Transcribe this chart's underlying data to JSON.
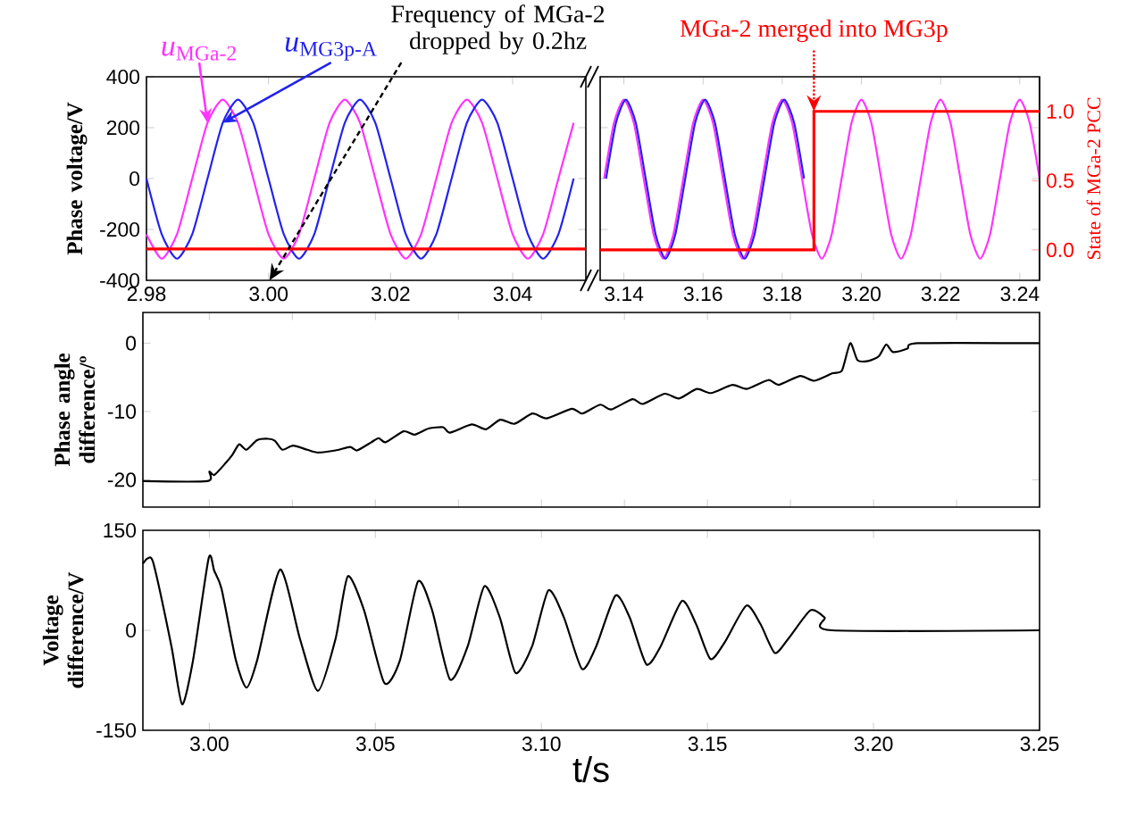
{
  "chart_data": [
    {
      "type": "line",
      "ylabel": "Phase voltage/V",
      "xlim": [
        2.98,
        3.052
      ],
      "xticks": [
        {
          "value": 2.98,
          "label": "2.98"
        },
        {
          "value": 3.0,
          "label": "3.00"
        },
        {
          "value": 3.02,
          "label": "3.02"
        },
        {
          "value": 3.04,
          "label": "3.04"
        }
      ],
      "ylim": [
        -400,
        400
      ],
      "yticks": [
        -400,
        -200,
        0,
        200,
        400
      ],
      "ref_lines": [
        {
          "axis": "y",
          "value": -277,
          "color": "#ff0000"
        }
      ],
      "x": [
        2.98,
        2.9825,
        2.985,
        2.9875,
        2.99,
        2.9925,
        2.995,
        2.9975,
        3.0,
        3.0025,
        3.005,
        3.0075,
        3.01,
        3.0125,
        3.015,
        3.0175,
        3.02,
        3.0225,
        3.025,
        3.0275,
        3.03,
        3.0325,
        3.035,
        3.0375,
        3.04,
        3.0425,
        3.045,
        3.0475,
        3.05
      ],
      "annotations": [
        "Frequency of MGa-2 dropped by 0.2hz"
      ],
      "series": [
        {
          "name": "*u*$_{MGa-2}$",
          "color": "#ff33ff",
          "values": [
            -219,
            -315,
            -219,
            0,
            219,
            310,
            219,
            0,
            -219,
            -315,
            -219,
            0,
            219,
            310,
            219,
            0,
            -219,
            -315,
            -219,
            0,
            219,
            310,
            219,
            0,
            -219,
            -315,
            -219,
            0,
            219
          ]
        },
        {
          "name": "*u*$_{MG3p-A}$",
          "color": "#2222ee",
          "values": [
            0,
            -219,
            -315,
            -219,
            0,
            219,
            310,
            219,
            0,
            -219,
            -315,
            -219,
            0,
            219,
            310,
            219,
            0,
            -219,
            -315,
            -219,
            0,
            219,
            310,
            219,
            0,
            -219,
            -315,
            -219,
            0
          ]
        }
      ]
    },
    {
      "type": "line",
      "y2label": "State of MGa-2 PCC",
      "xlim": [
        3.134,
        3.245
      ],
      "xticks": [
        {
          "value": 3.14,
          "label": "3.14"
        },
        {
          "value": 3.16,
          "label": "3.16"
        },
        {
          "value": 3.18,
          "label": "3.18"
        },
        {
          "value": 3.2,
          "label": "3.20"
        },
        {
          "value": 3.22,
          "label": "3.22"
        },
        {
          "value": 3.24,
          "label": "3.24"
        }
      ],
      "ylim": [
        -400,
        400
      ],
      "yticks": [
        -400,
        -200,
        0,
        200,
        400
      ],
      "tick_labels": "x",
      "y2lim": [
        -0.22,
        1.25
      ],
      "y2ticks": [
        {
          "value": 0,
          "label": "0.0"
        },
        {
          "value": 0.5,
          "label": "0.5"
        },
        {
          "value": 1,
          "label": "1.0"
        }
      ],
      "annotations": [
        {
          "text": "MGa-2 merged into MG3p",
          "x": 3.188,
          "y": 264
        }
      ],
      "series": [
        {
          "color": "#ff33ff",
          "x": [
            3.135,
            3.1375,
            3.14,
            3.1425,
            3.145,
            3.1475,
            3.15,
            3.1525,
            3.155,
            3.1575,
            3.16,
            3.1625,
            3.165,
            3.1675,
            3.17,
            3.1725,
            3.175,
            3.1775,
            3.18,
            3.1825,
            3.185,
            3.1875,
            3.19,
            3.1925,
            3.195,
            3.1975,
            3.2,
            3.2025,
            3.205,
            3.2075,
            3.21,
            3.2125,
            3.215,
            3.2175,
            3.22,
            3.2225,
            3.225,
            3.2275,
            3.23,
            3.2325,
            3.235,
            3.2375,
            3.24,
            3.2425,
            3.245
          ],
          "values": [
            0,
            219,
            310,
            219,
            0,
            -219,
            -315,
            -219,
            0,
            219,
            310,
            219,
            0,
            -219,
            -315,
            -219,
            0,
            219,
            310,
            219,
            0,
            -219,
            -315,
            -219,
            0,
            219,
            310,
            219,
            0,
            -219,
            -315,
            -219,
            0,
            219,
            310,
            219,
            0,
            -219,
            -315,
            -219,
            0,
            219,
            310,
            219,
            0
          ]
        },
        {
          "color": "#2222ee",
          "x": [
            3.1355,
            3.138,
            3.1405,
            3.143,
            3.1455,
            3.148,
            3.1505,
            3.153,
            3.1555,
            3.158,
            3.1605,
            3.163,
            3.1655,
            3.168,
            3.1705,
            3.173,
            3.1755,
            3.178,
            3.1805,
            3.183,
            3.1855
          ],
          "values": [
            0,
            219,
            310,
            219,
            0,
            -219,
            -315,
            -219,
            0,
            219,
            310,
            219,
            0,
            -219,
            -315,
            -219,
            0,
            219,
            310,
            219,
            0
          ]
        },
        {
          "type": "step",
          "axis": "y2",
          "color": "#ff0000",
          "x": [
            3.134,
            3.188,
            3.245
          ],
          "values": [
            0,
            1,
            1
          ]
        }
      ]
    },
    {
      "type": "line",
      "ylabel": "Phase angle difference/º",
      "xlim": [
        2.98,
        3.25
      ],
      "xticks": [
        {
          "value": 3.0,
          "label": null
        },
        {
          "value": 3.025,
          "label": null
        },
        {
          "value": 3.05,
          "label": null
        },
        {
          "value": 3.075,
          "label": null
        },
        {
          "value": 3.1,
          "label": null
        },
        {
          "value": 3.125,
          "label": null
        },
        {
          "value": 3.15,
          "label": null
        },
        {
          "value": 3.175,
          "label": null
        },
        {
          "value": 3.2,
          "label": null
        },
        {
          "value": 3.225,
          "label": null
        }
      ],
      "ylim": [
        -24,
        4.5
      ],
      "yticks": [
        -20,
        -10,
        0
      ],
      "tick_labels": "y",
      "color": "#000000",
      "x": [
        2.98,
        2.9994,
        3.0,
        3.0015,
        3.005,
        3.007,
        3.009,
        3.0112,
        3.0144,
        3.0177,
        3.0198,
        3.022,
        3.0252,
        3.0295,
        3.0327,
        3.038,
        3.0424,
        3.0445,
        3.0488,
        3.051,
        3.0531,
        3.0585,
        3.0618,
        3.066,
        3.0704,
        3.0725,
        3.079,
        3.0833,
        3.0876,
        3.0919,
        3.0973,
        3.1016,
        3.1091,
        3.1123,
        3.1177,
        3.121,
        3.1274,
        3.1306,
        3.1371,
        3.1414,
        3.1468,
        3.1511,
        3.1575,
        3.1618,
        3.1683,
        3.1715,
        3.1779,
        3.1822,
        3.1877,
        3.1905,
        3.193,
        3.1952,
        3.1984,
        3.2016,
        3.2038,
        3.2059,
        3.2102,
        3.2134,
        3.25
      ],
      "values": [
        -20.2,
        -20.2,
        -18.8,
        -19.3,
        -17.5,
        -16.3,
        -14.8,
        -15.6,
        -14.2,
        -14.0,
        -14.3,
        -15.6,
        -15.0,
        -15.6,
        -16.0,
        -15.7,
        -15.2,
        -15.7,
        -14.5,
        -13.9,
        -14.5,
        -12.9,
        -13.4,
        -12.5,
        -12.3,
        -13.1,
        -11.9,
        -12.6,
        -11.2,
        -11.8,
        -10.3,
        -11.0,
        -9.6,
        -10.3,
        -9.0,
        -9.7,
        -8.2,
        -8.9,
        -7.4,
        -8.1,
        -6.7,
        -7.3,
        -6.1,
        -6.7,
        -5.4,
        -6.1,
        -4.8,
        -5.5,
        -4.4,
        -4.0,
        0.0,
        -2.5,
        -2.6,
        -1.9,
        -0.2,
        -1.3,
        -0.8,
        0.0,
        0.0
      ]
    },
    {
      "type": "line",
      "xlabel": "t/s",
      "ylabel": "Voltage difference/V",
      "xlim": [
        2.98,
        3.25
      ],
      "xticks": [
        {
          "value": 3.0,
          "label": "3.00"
        },
        {
          "value": 3.05,
          "label": "3.05"
        },
        {
          "value": 3.1,
          "label": "3.10"
        },
        {
          "value": 3.15,
          "label": "3.15"
        },
        {
          "value": 3.2,
          "label": "3.20"
        },
        {
          "value": 3.25,
          "label": "3.25"
        }
      ],
      "ylim": [
        -150,
        150
      ],
      "yticks": [
        -150,
        0,
        150
      ],
      "color": "#000000",
      "x": [
        2.98,
        2.9815,
        2.9832,
        2.9886,
        2.9918,
        2.9951,
        2.9998,
        3.0015,
        3.0037,
        3.008,
        3.0112,
        3.0144,
        3.0213,
        3.0273,
        3.0327,
        3.038,
        3.0417,
        3.0466,
        3.0527,
        3.0574,
        3.0628,
        3.0671,
        3.0725,
        3.0778,
        3.0828,
        3.0875,
        3.0922,
        3.0972,
        3.1021,
        3.1068,
        3.1122,
        3.1165,
        3.1223,
        3.1266,
        3.1316,
        3.1359,
        3.1423,
        3.1466,
        3.1509,
        3.1552,
        3.1617,
        3.166,
        3.1703,
        3.1746,
        3.181,
        3.1853,
        3.1875,
        3.25
      ],
      "values": [
        100,
        108,
        100,
        -24,
        -111,
        -45,
        108,
        89,
        62,
        -45,
        -86,
        -45,
        91,
        -13,
        -91,
        -13,
        81,
        30,
        -79,
        -45,
        73,
        30,
        -74,
        -24,
        66,
        19,
        -64,
        -24,
        60,
        19,
        -58,
        -24,
        52,
        19,
        -51,
        -24,
        44,
        9,
        -43,
        -18,
        37,
        9,
        -34,
        -11,
        30,
        19,
        0,
        0
      ]
    }
  ]
}
